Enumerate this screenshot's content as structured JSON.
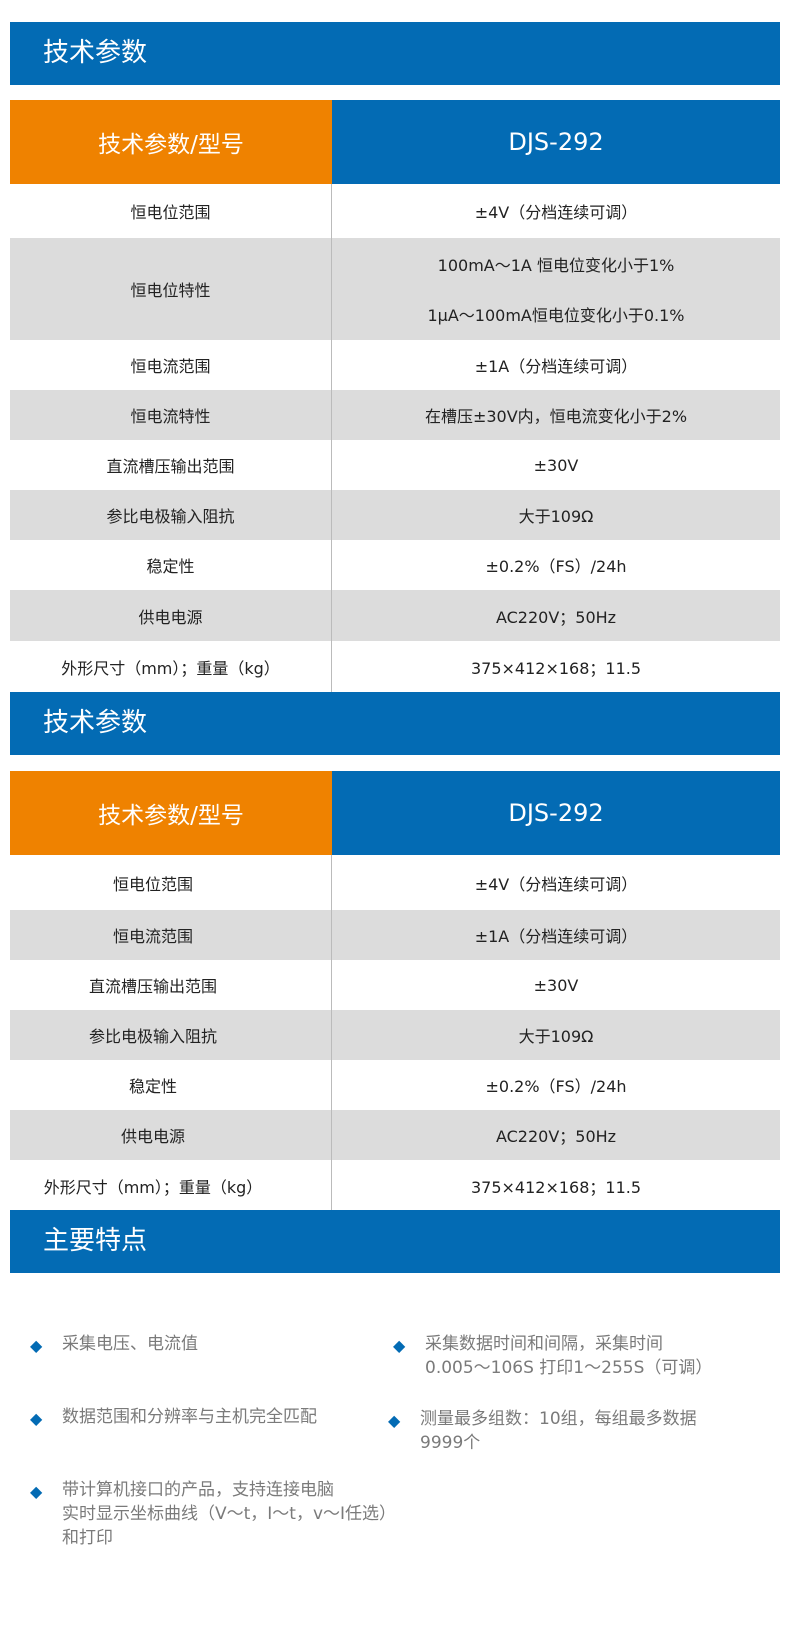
{
  "section1": {
    "title": "技术参数",
    "header_left": "技术参数/型号",
    "header_right": "DJS-292",
    "rows": [
      {
        "label": "恒电位范围",
        "values": [
          "±4V（分档连续可调）"
        ]
      },
      {
        "label": "恒电位特性",
        "values": [
          "100mA～1A 恒电位变化小于1%",
          "1μA～100mA恒电位变化小于0.1%"
        ]
      },
      {
        "label": "恒电流范围",
        "values": [
          "±1A（分档连续可调）"
        ]
      },
      {
        "label": "恒电流特性",
        "values": [
          "在槽压±30V内，恒电流变化小于2%"
        ]
      },
      {
        "label": "直流槽压输出范围",
        "values": [
          "±30V"
        ]
      },
      {
        "label": "参比电极输入阻抗",
        "values": [
          "大于109Ω"
        ]
      },
      {
        "label": "稳定性",
        "values": [
          "±0.2%（FS）/24h"
        ]
      },
      {
        "label": "供电电源",
        "values": [
          "AC220V；50Hz"
        ]
      },
      {
        "label": "外形尺寸（mm）；重量（kg）",
        "values": [
          "375×412×168；11.5"
        ]
      }
    ]
  },
  "section2": {
    "title": "技术参数",
    "header_left": "技术参数/型号",
    "header_right": "DJS-292",
    "rows": [
      {
        "label": "恒电位范围",
        "values": [
          "±4V（分档连续可调）"
        ]
      },
      {
        "label": "恒电流范围",
        "values": [
          "±1A（分档连续可调）"
        ]
      },
      {
        "label": "直流槽压输出范围",
        "values": [
          "±30V"
        ]
      },
      {
        "label": "参比电极输入阻抗",
        "values": [
          "大于109Ω"
        ]
      },
      {
        "label": "稳定性",
        "values": [
          "±0.2%（FS）/24h"
        ]
      },
      {
        "label": "供电电源",
        "values": [
          "AC220V；50Hz"
        ]
      },
      {
        "label": "外形尺寸（mm）；重量（kg）",
        "values": [
          "375×412×168；11.5"
        ]
      }
    ]
  },
  "features": {
    "title": "主要特点",
    "bullet_icon": "diamond-icon",
    "accent": "#036bb4",
    "items": [
      {
        "lines": [
          "采集电压、电流值"
        ]
      },
      {
        "lines": [
          "采集数据时间和间隔，采集时间",
          "0.005～106S  打印1～255S（可调）"
        ]
      },
      {
        "lines": [
          "数据范围和分辨率与主机完全匹配"
        ]
      },
      {
        "lines": [
          "测量最多组数：10组，每组最多数据",
          "9999个"
        ]
      },
      {
        "lines": [
          "带计算机接口的产品，支持连接电脑",
          "实时显示坐标曲线（V～t，I～t，v～I任选）",
          "和打印"
        ]
      }
    ]
  }
}
